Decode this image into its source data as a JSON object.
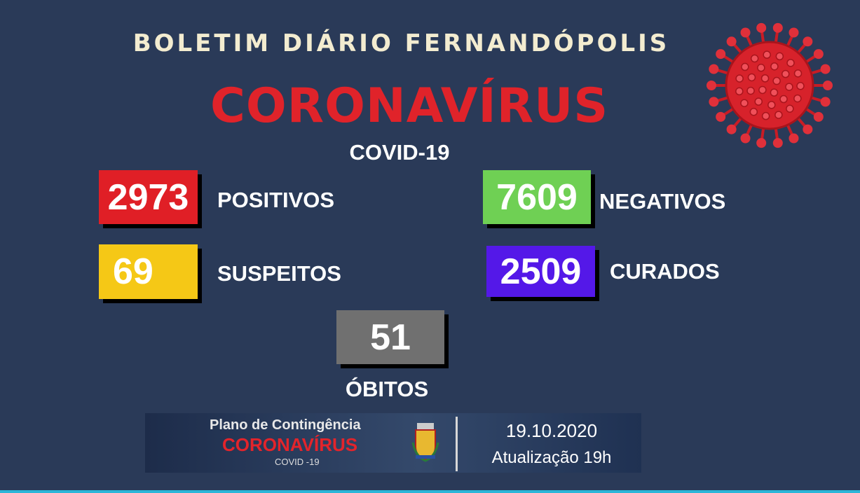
{
  "header": {
    "title": "BOLETIM DIÁRIO FERNANDÓPOLIS",
    "headline": "CORONAVÍRUS",
    "subtitle": "COVID-19"
  },
  "stats": {
    "positivos": {
      "value": "2973",
      "label": "POSITIVOS",
      "color": "#e01f26"
    },
    "negativos": {
      "value": "7609",
      "label": "NEGATIVOS",
      "color": "#6fd054"
    },
    "suspeitos": {
      "value": "69",
      "label": "SUSPEITOS",
      "color": "#f5c816"
    },
    "curados": {
      "value": "2509",
      "label": "CURADOS",
      "color": "#5418e8"
    },
    "obitos": {
      "value": "51",
      "label": "ÓBITOS",
      "color": "#707070"
    }
  },
  "banner": {
    "line1": "Plano de Contingência",
    "line2": "CORONAVÍRUS",
    "line3": "COVID -19",
    "date": "19.10.2020",
    "update": "Atualização 19h",
    "icon": "city-coat-of-arms"
  },
  "decor": {
    "icon": "virus-icon"
  }
}
